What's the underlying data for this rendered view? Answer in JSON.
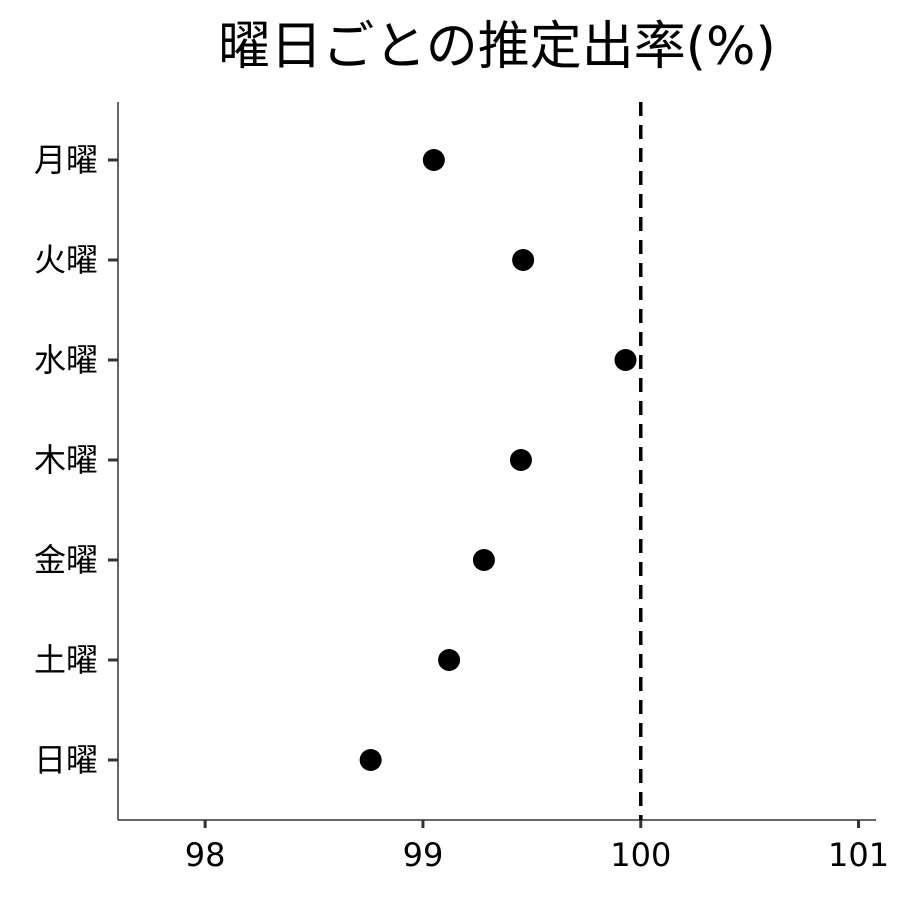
{
  "chart_data": {
    "type": "scatter",
    "title": "曜日ごとの推定出率(%)",
    "xlabel": "",
    "ylabel": "",
    "xlim": [
      97.6,
      101.08
    ],
    "xticks": [
      98,
      99,
      100,
      101
    ],
    "xtick_labels": [
      "98",
      "99",
      "100",
      "101"
    ],
    "categories": [
      "月曜",
      "火曜",
      "水曜",
      "木曜",
      "金曜",
      "土曜",
      "日曜"
    ],
    "values": [
      99.05,
      99.46,
      99.93,
      99.45,
      99.28,
      99.12,
      98.76
    ],
    "reference_line": {
      "x": 100,
      "style": "dashed"
    },
    "grid": false,
    "legend": "none",
    "colors": {
      "point": "#000000",
      "axis": "#333333",
      "reference": "#000000"
    }
  }
}
